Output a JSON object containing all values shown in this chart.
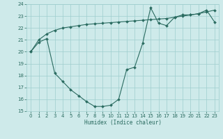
{
  "line1_x": [
    0,
    1,
    2,
    3,
    4,
    5,
    6,
    7,
    8,
    9,
    10,
    11,
    12,
    13,
    14,
    15,
    16,
    17,
    18,
    19,
    20,
    21,
    22,
    23
  ],
  "line1_y": [
    20.0,
    20.8,
    21.1,
    18.2,
    17.5,
    16.8,
    16.3,
    15.8,
    15.4,
    15.4,
    15.5,
    16.0,
    18.5,
    18.7,
    20.7,
    23.7,
    22.4,
    22.2,
    22.9,
    23.1,
    23.1,
    23.2,
    23.5,
    22.5
  ],
  "line2_x": [
    0,
    1,
    2,
    3,
    4,
    5,
    6,
    7,
    8,
    9,
    10,
    11,
    12,
    13,
    14,
    15,
    16,
    17,
    18,
    19,
    20,
    21,
    22,
    23
  ],
  "line2_y": [
    20.0,
    21.0,
    21.5,
    21.8,
    22.0,
    22.1,
    22.2,
    22.3,
    22.35,
    22.4,
    22.45,
    22.5,
    22.55,
    22.6,
    22.65,
    22.7,
    22.75,
    22.8,
    22.9,
    23.0,
    23.1,
    23.2,
    23.35,
    23.5
  ],
  "line_color": "#2a6b60",
  "bg_color": "#ceeaea",
  "grid_color": "#9ecece",
  "xlabel": "Humidex (Indice chaleur)",
  "ylim": [
    15,
    24
  ],
  "xlim": [
    -0.5,
    23.5
  ]
}
